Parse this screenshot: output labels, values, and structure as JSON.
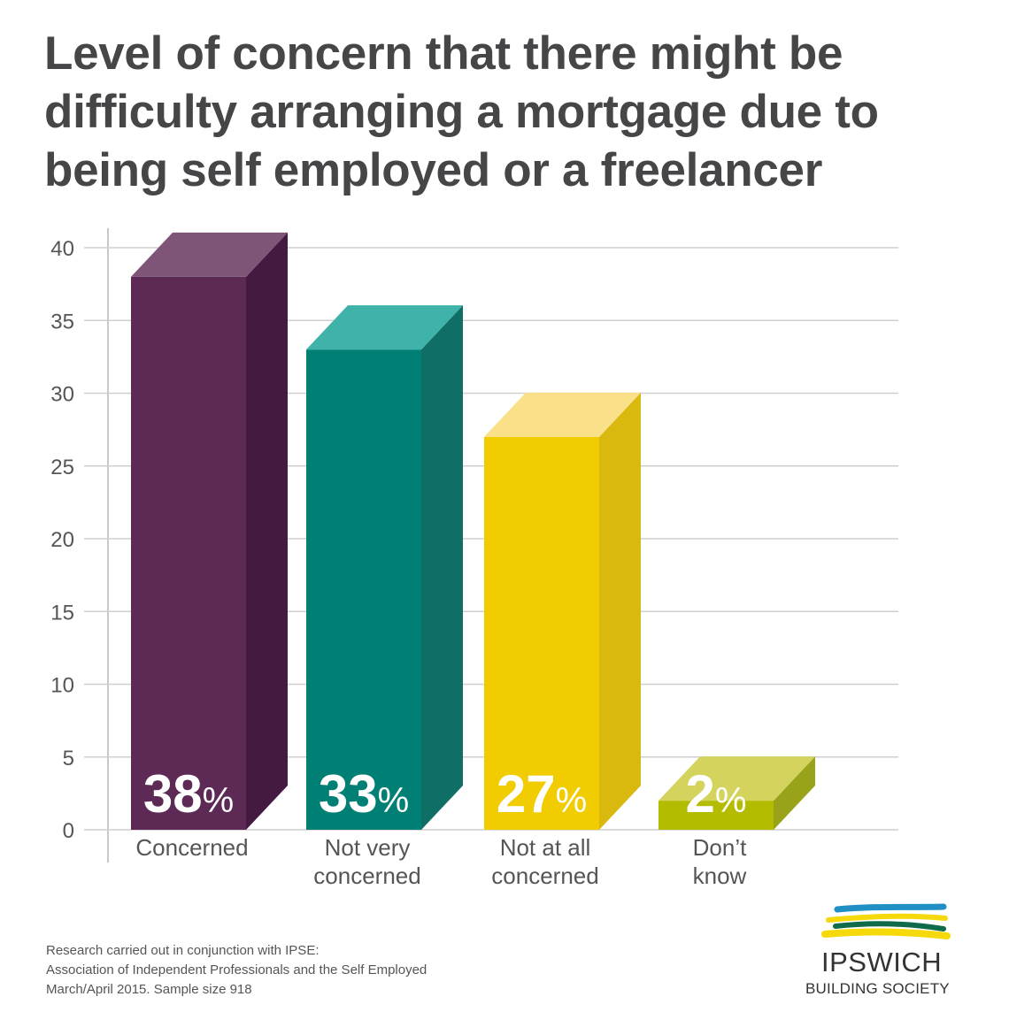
{
  "title_lines": [
    "Level of concern that there might be",
    "difficulty arranging a mortgage due to",
    "being self employed or a freelancer"
  ],
  "chart_data": {
    "type": "bar",
    "title": "Level of concern that there might be difficulty arranging a mortgage due to being self employed or a freelancer",
    "categories": [
      [
        "Concerned"
      ],
      [
        "Not very",
        "concerned"
      ],
      [
        "Not at all",
        "concerned"
      ],
      [
        "Don’t",
        "know"
      ]
    ],
    "values": [
      38,
      33,
      27,
      2
    ],
    "data_labels": [
      "38",
      "33",
      "27",
      "2"
    ],
    "data_label_unit": "%",
    "ylim": [
      0,
      40
    ],
    "yticks": [
      "0",
      "5",
      "10",
      "15",
      "20",
      "25",
      "30",
      "35",
      "40"
    ],
    "grid": true,
    "style": "3d-bar",
    "colors": [
      {
        "front": "#5c2a55",
        "side": "#451a42",
        "top": "#7e5577"
      },
      {
        "front": "#008075",
        "side": "#0f6e65",
        "top": "#3fb3aa"
      },
      {
        "front": "#f0cc00",
        "side": "#d9b90e",
        "top": "#fbe08a"
      },
      {
        "front": "#b4bc00",
        "side": "#98a31a",
        "top": "#d4d35e"
      }
    ]
  },
  "footnote": [
    "Research carried out in conjunction with IPSE:",
    "Association of Independent Professionals and the Self Employed",
    "March/April 2015. Sample size 918"
  ],
  "logo": {
    "name": "IPSWICH",
    "subtitle": "BUILDING SOCIETY",
    "colors": [
      "#1f8fc4",
      "#f5d90a",
      "#0f6b4a",
      "#f5d90a"
    ]
  }
}
